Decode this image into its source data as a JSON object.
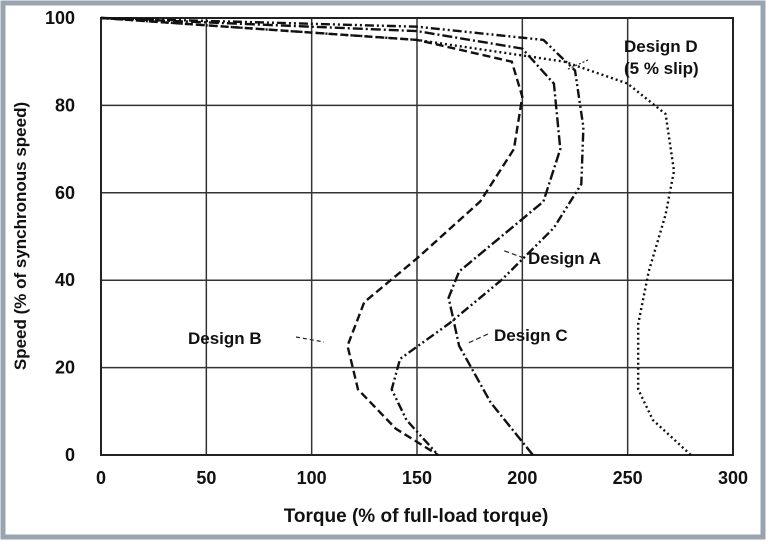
{
  "chart_data": {
    "type": "line",
    "xlabel": "Torque (% of full-load torque)",
    "ylabel": "Speed (% of synchronous speed)",
    "xlim": [
      0,
      300
    ],
    "xticks": [
      0,
      50,
      100,
      150,
      200,
      250,
      300
    ],
    "ylim": [
      0,
      100
    ],
    "yticks": [
      0,
      20,
      40,
      60,
      80,
      100
    ],
    "grid": true,
    "annotations": [
      "Design D",
      "(5 % slip)",
      "Design A",
      "Design B",
      "Design C"
    ],
    "series": [
      {
        "name": "Design A",
        "color": "#111111",
        "dash": "9,3,2,3,2,3",
        "x": [
          0,
          150,
          210,
          225,
          229,
          228,
          215,
          190,
          165,
          142,
          138,
          145,
          160
        ],
        "y": [
          100,
          98,
          95,
          88,
          75,
          62,
          52,
          40,
          30,
          22,
          15,
          8,
          0
        ]
      },
      {
        "name": "Design B",
        "color": "#111111",
        "dash": "8,4",
        "x": [
          0,
          150,
          195,
          200,
          196,
          180,
          150,
          125,
          117,
          122,
          140,
          160
        ],
        "y": [
          100,
          95,
          90,
          82,
          70,
          58,
          45,
          35,
          25,
          15,
          6,
          0
        ]
      },
      {
        "name": "Design C",
        "color": "#111111",
        "dash": "10,3,2,3",
        "x": [
          0,
          150,
          200,
          215,
          218,
          210,
          190,
          170,
          165,
          170,
          185,
          205
        ],
        "y": [
          100,
          97,
          93,
          85,
          70,
          58,
          50,
          42,
          36,
          25,
          12,
          0
        ]
      },
      {
        "name": "Design D",
        "color": "#111111",
        "dash": "2,3",
        "x": [
          0,
          150,
          220,
          250,
          268,
          272,
          268,
          260,
          255,
          255,
          262,
          280
        ],
        "y": [
          100,
          95,
          90,
          85,
          78,
          65,
          55,
          42,
          30,
          15,
          8,
          0
        ]
      }
    ]
  }
}
